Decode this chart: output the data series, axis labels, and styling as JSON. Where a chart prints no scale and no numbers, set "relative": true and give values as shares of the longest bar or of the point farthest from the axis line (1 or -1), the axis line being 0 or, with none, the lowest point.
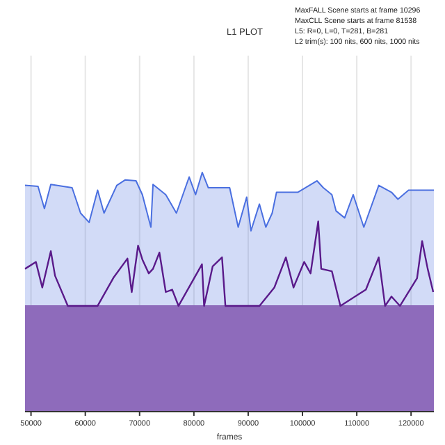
{
  "chart_data": {
    "type": "area",
    "title": "L1 PLOT",
    "xlabel": "frames",
    "relative": true,
    "grid": "x",
    "xlim": [
      48900,
      124200
    ],
    "xticks": [
      50000,
      60000,
      70000,
      80000,
      90000,
      100000,
      110000,
      120000
    ],
    "annotations": [
      "MaxFALL Scene starts at frame 10296",
      "MaxCLL Scene starts at frame 81538",
      "L5: R=0, L=0, T=281, B=281",
      "L2 trim(s): 100 nits, 600 nits, 1000 nits"
    ],
    "series": [
      {
        "color": "#4a6fe0",
        "x": [
          48900,
          51290,
          52470,
          53650,
          57570,
          59130,
          60700,
          62270,
          63450,
          65800,
          67370,
          69340,
          70510,
          72080,
          72470,
          74820,
          76780,
          79130,
          80310,
          81538,
          82660,
          86590,
          88160,
          89720,
          90510,
          92070,
          93250,
          94420,
          95220,
          99130,
          102660,
          103840,
          105410,
          106190,
          107770,
          109340,
          111300,
          114050,
          116400,
          117580,
          119540,
          124200
        ],
        "values": [
          0.946,
          0.942,
          0.849,
          0.95,
          0.936,
          0.83,
          0.791,
          0.926,
          0.83,
          0.946,
          0.969,
          0.965,
          0.907,
          0.771,
          0.95,
          0.907,
          0.83,
          0.981,
          0.907,
          1,
          0.936,
          0.936,
          0.771,
          0.897,
          0.756,
          0.868,
          0.771,
          0.83,
          0.917,
          0.917,
          0.965,
          0.936,
          0.907,
          0.839,
          0.81,
          0.907,
          0.771,
          0.946,
          0.917,
          0.888,
          0.926,
          0.926
        ]
      },
      {
        "color": "#8e6bbb",
        "x": [
          48900,
          124200
        ],
        "values": [
          0.442,
          0.442
        ]
      },
      {
        "type": "line",
        "color": "#5a1a8a",
        "x": [
          48900,
          50900,
          52080,
          53650,
          54430,
          56780,
          62270,
          65250,
          67760,
          68550,
          69720,
          70510,
          71690,
          72470,
          73650,
          74820,
          76000,
          77170,
          81490,
          81880,
          83450,
          85180,
          85800,
          88940,
          92080,
          94820,
          96940,
          98350,
          100310,
          101490,
          102900,
          103450,
          105410,
          106980,
          111680,
          114040,
          115210,
          116390,
          117960,
          121100,
          122040,
          123060,
          124080
        ],
        "values": [
          0.597,
          0.626,
          0.519,
          0.671,
          0.568,
          0.442,
          0.442,
          0.562,
          0.64,
          0.5,
          0.694,
          0.636,
          0.578,
          0.597,
          0.665,
          0.5,
          0.51,
          0.442,
          0.616,
          0.442,
          0.607,
          0.645,
          0.442,
          0.442,
          0.442,
          0.519,
          0.645,
          0.519,
          0.626,
          0.578,
          0.795,
          0.597,
          0.587,
          0.442,
          0.51,
          0.645,
          0.442,
          0.481,
          0.442,
          0.558,
          0.713,
          0.597,
          0.5
        ]
      }
    ]
  }
}
